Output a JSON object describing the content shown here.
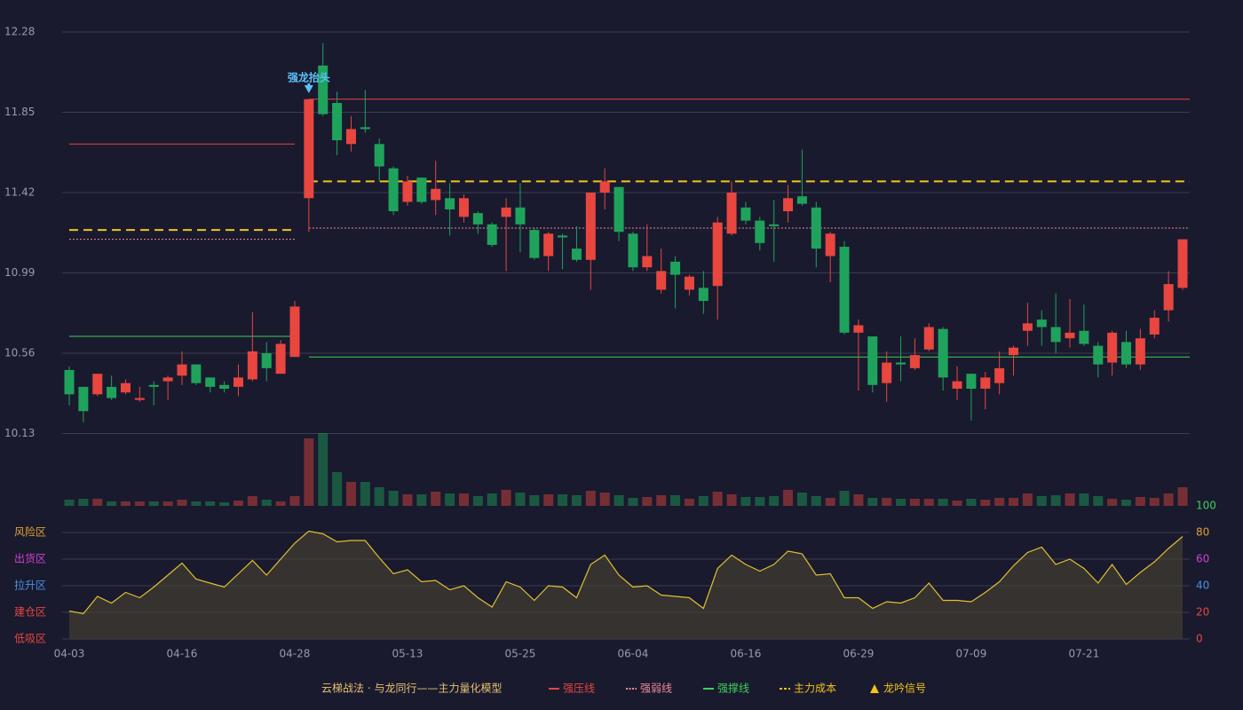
{
  "chart_data": {
    "type": "candlestick",
    "categories": [
      "04-03",
      null,
      null,
      null,
      null,
      null,
      null,
      null,
      "04-16",
      null,
      null,
      null,
      null,
      null,
      null,
      null,
      "04-28",
      null,
      null,
      null,
      null,
      null,
      null,
      null,
      "05-13",
      null,
      null,
      null,
      null,
      null,
      null,
      null,
      "05-25",
      null,
      null,
      null,
      null,
      null,
      null,
      null,
      "06-04",
      null,
      null,
      null,
      null,
      null,
      null,
      null,
      "06-16",
      null,
      null,
      null,
      null,
      null,
      null,
      null,
      "06-29",
      null,
      null,
      null,
      null,
      null,
      null,
      null,
      "07-09",
      null,
      null,
      null,
      null,
      null,
      null,
      null,
      "07-21",
      null,
      null,
      null,
      null,
      null,
      null,
      null
    ],
    "open": [
      10.47,
      10.38,
      10.34,
      10.38,
      10.35,
      10.31,
      10.39,
      10.41,
      10.44,
      10.5,
      10.43,
      10.39,
      10.38,
      10.42,
      10.56,
      10.45,
      10.54,
      11.39,
      12.1,
      11.9,
      11.68,
      11.77,
      11.68,
      11.55,
      11.37,
      11.5,
      11.38,
      11.39,
      11.29,
      11.31,
      11.25,
      11.29,
      11.34,
      11.22,
      11.08,
      11.19,
      11.12,
      11.06,
      11.42,
      11.45,
      11.2,
      11.02,
      10.9,
      11.05,
      10.9,
      10.91,
      10.92,
      11.2,
      11.34,
      11.27,
      11.25,
      11.32,
      11.4,
      11.34,
      11.08,
      11.13,
      10.67,
      10.65,
      10.4,
      10.51,
      10.48,
      10.58,
      10.69,
      10.37,
      10.45,
      10.37,
      10.4,
      10.55,
      10.68,
      10.74,
      10.7,
      10.64,
      10.68,
      10.6,
      10.51,
      10.62,
      10.5,
      10.66,
      10.79,
      10.91
    ],
    "high": [
      10.49,
      10.38,
      10.45,
      10.44,
      10.42,
      10.38,
      10.41,
      10.44,
      10.57,
      10.5,
      10.43,
      10.41,
      10.5,
      10.78,
      10.62,
      10.63,
      10.84,
      11.92,
      12.22,
      11.96,
      11.83,
      11.97,
      11.71,
      11.56,
      11.51,
      11.5,
      11.59,
      11.47,
      11.41,
      11.32,
      11.26,
      11.39,
      11.47,
      11.23,
      11.21,
      11.2,
      11.24,
      11.42,
      11.55,
      11.45,
      11.21,
      11.25,
      11.12,
      11.08,
      10.98,
      11.0,
      11.29,
      11.48,
      11.37,
      11.29,
      11.38,
      11.46,
      11.65,
      11.37,
      11.21,
      11.16,
      10.74,
      10.65,
      10.57,
      10.65,
      10.64,
      10.72,
      10.7,
      10.49,
      10.45,
      10.46,
      10.57,
      10.6,
      10.83,
      10.79,
      10.88,
      10.85,
      10.82,
      10.62,
      10.68,
      10.68,
      10.69,
      10.79,
      11.0,
      11.17
    ],
    "low": [
      10.28,
      10.19,
      10.33,
      10.31,
      10.34,
      10.3,
      10.28,
      10.31,
      10.39,
      10.39,
      10.35,
      10.35,
      10.33,
      10.41,
      10.41,
      10.45,
      10.54,
      11.21,
      11.83,
      11.62,
      11.64,
      11.74,
      11.48,
      11.3,
      11.35,
      11.36,
      11.3,
      11.19,
      11.26,
      11.2,
      11.13,
      11.0,
      11.1,
      11.06,
      11.0,
      11.01,
      11.05,
      10.9,
      11.33,
      11.16,
      11.0,
      11.0,
      10.88,
      10.8,
      10.87,
      10.77,
      10.74,
      11.19,
      11.25,
      11.11,
      11.05,
      11.26,
      11.35,
      11.02,
      10.94,
      10.66,
      10.36,
      10.35,
      10.3,
      10.41,
      10.47,
      10.57,
      10.36,
      10.31,
      10.2,
      10.26,
      10.34,
      10.44,
      10.6,
      10.6,
      10.56,
      10.59,
      10.6,
      10.43,
      10.44,
      10.48,
      10.47,
      10.64,
      10.73,
      10.9
    ],
    "close": [
      10.34,
      10.25,
      10.45,
      10.32,
      10.4,
      10.32,
      10.38,
      10.43,
      10.5,
      10.4,
      10.38,
      10.37,
      10.43,
      10.57,
      10.48,
      10.61,
      10.81,
      11.92,
      11.84,
      11.7,
      11.76,
      11.76,
      11.56,
      11.32,
      11.48,
      11.37,
      11.44,
      11.33,
      11.39,
      11.25,
      11.14,
      11.34,
      11.25,
      11.07,
      11.2,
      11.18,
      11.06,
      11.42,
      11.48,
      11.21,
      11.02,
      11.08,
      11.0,
      10.98,
      10.97,
      10.84,
      11.26,
      11.42,
      11.27,
      11.15,
      11.24,
      11.39,
      11.36,
      11.12,
      11.2,
      10.67,
      10.71,
      10.39,
      10.51,
      10.5,
      10.55,
      10.7,
      10.43,
      10.41,
      10.37,
      10.43,
      10.48,
      10.59,
      10.72,
      10.7,
      10.62,
      10.67,
      10.61,
      10.5,
      10.67,
      10.5,
      10.64,
      10.75,
      10.93,
      11.17
    ],
    "volume": [
      7,
      8,
      8,
      5,
      5,
      5,
      5,
      5,
      7,
      5,
      5,
      4,
      6,
      11,
      7,
      5,
      11,
      76,
      82,
      38,
      27,
      27,
      21,
      17,
      13,
      13,
      16,
      14,
      14,
      11,
      14,
      18,
      15,
      12,
      13,
      13,
      12,
      17,
      15,
      12,
      9,
      10,
      12,
      12,
      8,
      11,
      16,
      13,
      10,
      10,
      11,
      18,
      15,
      11,
      9,
      17,
      13,
      9,
      9,
      8,
      8,
      8,
      8,
      6,
      8,
      7,
      9,
      9,
      14,
      11,
      12,
      14,
      14,
      11,
      8,
      7,
      10,
      9,
      14,
      21
    ],
    "up_color": "#e8463f",
    "down_color": "#1fa35c",
    "ylim": [
      10.13,
      12.28
    ],
    "yticks": [
      10.13,
      10.56,
      10.99,
      11.42,
      11.85,
      12.28
    ],
    "grid": true,
    "annotation": {
      "text": "强龙抬头",
      "index": 17,
      "color": "#5bc0f8"
    },
    "levels": [
      {
        "name": "强压线",
        "color": "#e8463f",
        "style": "solid",
        "values": [
          11.68,
          11.92
        ]
      },
      {
        "name": "强弱线",
        "color": "#f08a9a",
        "style": "dotted",
        "values": [
          11.17,
          11.23
        ]
      },
      {
        "name": "强撑线",
        "color": "#3ecf5a",
        "style": "solid",
        "values": [
          10.65,
          10.54
        ]
      },
      {
        "name": "主力成本",
        "color": "#f2c318",
        "style": "dashed",
        "values": [
          11.22,
          11.48
        ]
      }
    ],
    "signal": {
      "name": "龙吟信号",
      "color": "#f2c318"
    },
    "legend_title": "云梯战法 · 与龙同行——主力量化模型",
    "indicator": {
      "values": [
        21,
        19,
        32,
        27,
        35,
        31,
        39,
        48,
        57,
        45,
        42,
        39,
        49,
        59,
        48,
        60,
        72,
        81,
        79,
        73,
        74,
        74,
        61,
        49,
        52,
        43,
        44,
        37,
        40,
        31,
        24,
        43,
        39,
        29,
        40,
        39,
        31,
        56,
        63,
        48,
        39,
        40,
        33,
        32,
        31,
        23,
        53,
        63,
        56,
        51,
        56,
        66,
        64,
        48,
        49,
        31,
        31,
        23,
        28,
        27,
        31,
        42,
        29,
        29,
        28,
        35,
        43,
        55,
        65,
        69,
        56,
        60,
        53,
        42,
        56,
        41,
        50,
        58,
        68,
        77
      ],
      "color": "#e0c030",
      "ylim": [
        0,
        100
      ],
      "yticks": [
        0,
        20,
        40,
        60,
        80,
        100
      ],
      "ytick_colors": [
        "#e8463f",
        "#e8463f",
        "#4a90e2",
        "#d040d0",
        "#e0a030",
        "#3ecf5a"
      ],
      "zones": [
        {
          "label": "低吸区",
          "value": 0,
          "color": "#e8463f"
        },
        {
          "label": "建仓区",
          "value": 20,
          "color": "#e8463f"
        },
        {
          "label": "拉升区",
          "value": 40,
          "color": "#4a90e2"
        },
        {
          "label": "出货区",
          "value": 60,
          "color": "#d040d0"
        },
        {
          "label": "风险区",
          "value": 80,
          "color": "#e0a030"
        }
      ]
    }
  }
}
